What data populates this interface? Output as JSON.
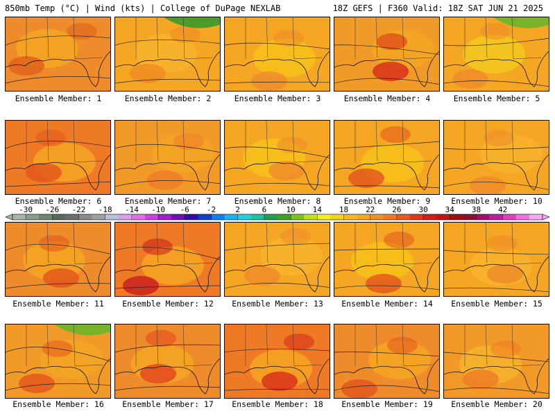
{
  "header": {
    "left": "850mb Temp (°C) | Wind (kts) | College of DuPage NEXLAB",
    "right": "18Z GEFS | F360 Valid: 18Z SAT JUN 21 2025"
  },
  "members": [
    {
      "label": "Ensemble Member: 1",
      "base": "#ee8b2a",
      "accent": "#f5a623",
      "hot": "#e0601c",
      "cool": null
    },
    {
      "label": "Ensemble Member: 2",
      "base": "#f5a623",
      "accent": "#f7b32b",
      "hot": "#ef8b20",
      "cool": "#3a9a2a"
    },
    {
      "label": "Ensemble Member: 3",
      "base": "#f5a623",
      "accent": "#f7c21a",
      "hot": "#ee8b2a",
      "cool": null
    },
    {
      "label": "Ensemble Member: 4",
      "base": "#f09a27",
      "accent": "#f5a623",
      "hot": "#d72a1a",
      "cool": null
    },
    {
      "label": "Ensemble Member: 5",
      "base": "#f5a623",
      "accent": "#f2c81e",
      "hot": "#ee8b2a",
      "cool": "#6cb52a"
    },
    {
      "label": "Ensemble Member: 6",
      "base": "#ee7a25",
      "accent": "#f5a623",
      "hot": "#e2551d",
      "cool": null
    },
    {
      "label": "Ensemble Member: 7",
      "base": "#f29a28",
      "accent": "#f5a623",
      "hot": "#ee7a25",
      "cool": null
    },
    {
      "label": "Ensemble Member: 8",
      "base": "#f5a623",
      "accent": "#f7c21a",
      "hot": "#ee8b2a",
      "cool": null
    },
    {
      "label": "Ensemble Member: 9",
      "base": "#f5a623",
      "accent": "#f7c21a",
      "hot": "#e2551d",
      "cool": null
    },
    {
      "label": "Ensemble Member: 10",
      "base": "#f5a623",
      "accent": "#f7b32b",
      "hot": "#ee8b2a",
      "cool": null
    },
    {
      "label": "Ensemble Member: 11",
      "base": "#ee8b2a",
      "accent": "#f5a623",
      "hot": "#e2551d",
      "cool": null
    },
    {
      "label": "Ensemble Member: 12",
      "base": "#ee7a25",
      "accent": "#f5a623",
      "hot": "#c81e1e",
      "cool": null
    },
    {
      "label": "Ensemble Member: 13",
      "base": "#f5a623",
      "accent": "#f7b32b",
      "hot": "#ee8b2a",
      "cool": null
    },
    {
      "label": "Ensemble Member: 14",
      "base": "#f5a623",
      "accent": "#f7c21a",
      "hot": "#e2551d",
      "cool": null
    },
    {
      "label": "Ensemble Member: 15",
      "base": "#f5a623",
      "accent": "#f7b32b",
      "hot": "#ee8b2a",
      "cool": null
    },
    {
      "label": "Ensemble Member: 16",
      "base": "#f29a28",
      "accent": "#f5a623",
      "hot": "#e2551d",
      "cool": "#6cb52a"
    },
    {
      "label": "Ensemble Member: 17",
      "base": "#ee8b2a",
      "accent": "#f5a623",
      "hot": "#e2451d",
      "cool": null
    },
    {
      "label": "Ensemble Member: 18",
      "base": "#ee7a25",
      "accent": "#f5a623",
      "hot": "#d72a1a",
      "cool": null
    },
    {
      "label": "Ensemble Member: 19",
      "base": "#ee8b2a",
      "accent": "#f5a623",
      "hot": "#e2551d",
      "cool": null
    },
    {
      "label": "Ensemble Member: 20",
      "base": "#f29a28",
      "accent": "#f7b32b",
      "hot": "#ee7a25",
      "cool": null
    }
  ],
  "colorbar": {
    "ticks": [
      "-30",
      "-26",
      "-22",
      "-18",
      "-14",
      "-10",
      "-6",
      "-2",
      "2",
      "6",
      "10",
      "14",
      "18",
      "22",
      "26",
      "30",
      "34",
      "38",
      "42"
    ],
    "colors": [
      "#a8b4a8",
      "#8c9c8c",
      "#708470",
      "#5a6a5a",
      "#6f6f6f",
      "#8a8a8a",
      "#a0a0a0",
      "#b8c0d8",
      "#d8a0e8",
      "#e070e8",
      "#d040e0",
      "#a020d0",
      "#7010b8",
      "#3010a8",
      "#1040d0",
      "#1080f0",
      "#20b0f0",
      "#20d0e0",
      "#20c0a0",
      "#20a050",
      "#40a020",
      "#80c020",
      "#c0e020",
      "#f0f020",
      "#f7d21a",
      "#f5b823",
      "#f5a623",
      "#f09028",
      "#ee7a25",
      "#e65a1e",
      "#de3a1a",
      "#d41e1e",
      "#c01818",
      "#a01010",
      "#8a1030",
      "#a01070",
      "#c020a0",
      "#e040c0",
      "#f070e0",
      "#f8a8f0"
    ]
  }
}
